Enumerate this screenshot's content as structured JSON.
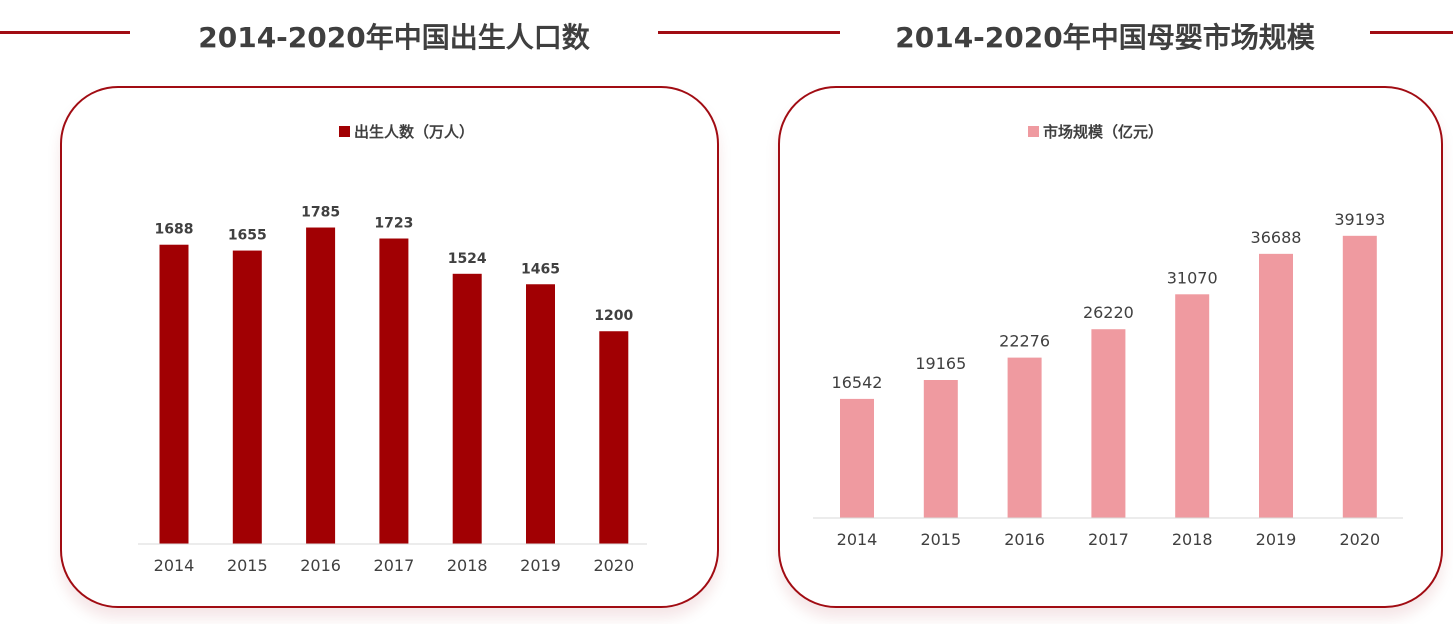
{
  "colors": {
    "accent": "#a10c13",
    "bar_primary": "#a10003",
    "bar_secondary": "#ef9aa0",
    "heading_text": "#3f3f3f",
    "label_text": "#404040",
    "axis": "#d9d9d9"
  },
  "chart_data": [
    {
      "type": "bar",
      "title": "2014-2020年中国出生人口数",
      "categories": [
        "2014",
        "2015",
        "2016",
        "2017",
        "2018",
        "2019",
        "2020"
      ],
      "series": [
        {
          "name": "出生人数（万人）",
          "values": [
            1688,
            1655,
            1785,
            1723,
            1524,
            1465,
            1200
          ]
        }
      ],
      "legend_position": "top-center",
      "data_labels": true,
      "grid": false
    },
    {
      "type": "bar",
      "title": "2014-2020年中国母婴市场规模",
      "categories": [
        "2014",
        "2015",
        "2016",
        "2017",
        "2018",
        "2019",
        "2020"
      ],
      "series": [
        {
          "name": "市场规模（亿元）",
          "values": [
            16542,
            19165,
            22276,
            26220,
            31070,
            36688,
            39193
          ]
        }
      ],
      "legend_position": "top-center",
      "data_labels": true,
      "grid": false
    }
  ]
}
